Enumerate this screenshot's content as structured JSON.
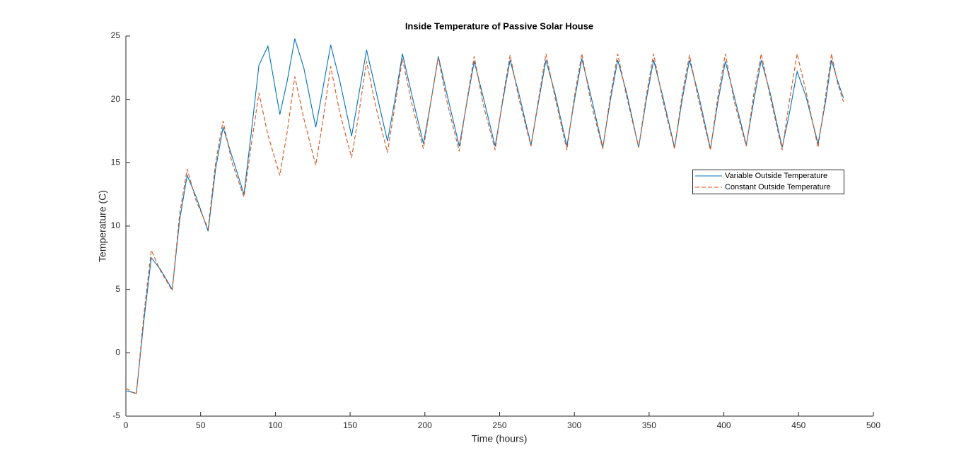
{
  "chart_data": {
    "type": "line",
    "title": "Inside Temperature of Passive Solar House",
    "x_label": "Time (hours)",
    "y_label": "Temperature (C)",
    "xlim": [
      0,
      500
    ],
    "ylim": [
      -5,
      25
    ],
    "xticks": [
      0,
      50,
      100,
      150,
      200,
      250,
      300,
      350,
      400,
      450,
      500
    ],
    "yticks": [
      -5,
      0,
      5,
      10,
      15,
      20,
      25
    ],
    "legend": "east",
    "x": [
      0,
      7,
      12,
      17,
      23,
      31,
      36,
      41,
      47,
      55,
      60,
      65,
      71,
      79,
      84,
      89,
      95,
      103,
      108,
      113,
      119,
      127,
      132,
      137,
      143,
      151,
      156,
      161,
      167,
      175,
      180,
      185,
      191,
      199,
      204,
      209,
      215,
      223,
      228,
      233,
      239,
      247,
      252,
      257,
      263,
      271,
      276,
      281,
      287,
      295,
      300,
      305,
      311,
      319,
      324,
      329,
      335,
      343,
      348,
      353,
      359,
      367,
      372,
      377,
      383,
      391,
      396,
      401,
      407,
      415,
      420,
      425,
      431,
      439,
      444,
      449,
      455,
      463,
      468,
      472,
      476,
      480
    ],
    "series": [
      {
        "name": "Variable Outside Temperature",
        "color": "#0072bd",
        "dash": false,
        "values": [
          -3.0,
          -3.2,
          2.5,
          7.5,
          6.6,
          5.0,
          10.5,
          14.0,
          12.3,
          9.6,
          14.5,
          17.8,
          15.5,
          12.5,
          17.5,
          22.7,
          24.2,
          18.8,
          21.5,
          24.8,
          22.5,
          17.8,
          21.0,
          24.3,
          21.5,
          17.1,
          20.5,
          23.9,
          20.8,
          16.7,
          20.0,
          23.6,
          20.5,
          16.5,
          19.8,
          23.4,
          20.3,
          16.3,
          19.7,
          23.0,
          20.2,
          16.3,
          19.8,
          23.1,
          20.4,
          16.4,
          19.8,
          23.1,
          20.5,
          16.3,
          19.9,
          23.2,
          20.3,
          16.2,
          19.9,
          23.1,
          20.5,
          16.2,
          19.9,
          23.1,
          20.3,
          16.2,
          19.9,
          23.1,
          20.4,
          16.1,
          19.8,
          23.0,
          20.2,
          16.4,
          19.9,
          23.1,
          20.5,
          16.2,
          19.0,
          22.2,
          20.2,
          16.5,
          19.8,
          23.1,
          21.5,
          20.1
        ]
      },
      {
        "name": "Constant Outside Temperature",
        "color": "#d95319",
        "dash": true,
        "values": [
          -2.8,
          -3.3,
          3.0,
          8.1,
          6.5,
          4.9,
          11.0,
          14.5,
          12.0,
          9.8,
          15.0,
          18.3,
          15.0,
          12.3,
          16.5,
          20.5,
          17.2,
          14.0,
          17.5,
          21.8,
          18.5,
          14.8,
          18.5,
          22.6,
          19.0,
          15.4,
          19.0,
          23.0,
          19.5,
          15.8,
          19.5,
          23.2,
          19.8,
          16.1,
          19.8,
          23.3,
          19.7,
          15.9,
          19.8,
          23.4,
          19.6,
          16.0,
          20.0,
          23.5,
          20.0,
          16.3,
          20.0,
          23.6,
          20.2,
          16.0,
          20.2,
          23.6,
          19.8,
          16.1,
          20.2,
          23.6,
          20.2,
          16.2,
          20.2,
          23.6,
          20.0,
          16.1,
          20.3,
          23.5,
          20.0,
          16.0,
          20.2,
          23.6,
          19.8,
          16.3,
          20.4,
          23.6,
          20.2,
          16.0,
          20.0,
          23.6,
          20.6,
          16.2,
          20.2,
          23.6,
          21.3,
          19.8
        ]
      }
    ]
  }
}
